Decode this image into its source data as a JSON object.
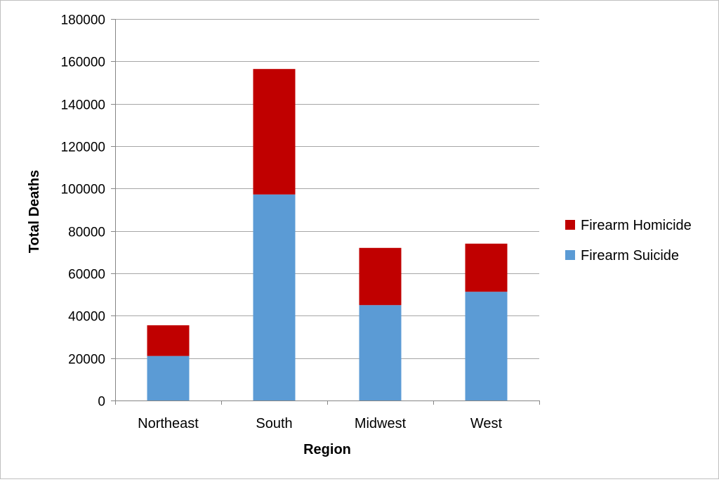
{
  "chart_data": {
    "type": "bar",
    "stacked": true,
    "categories": [
      "Northeast",
      "South",
      "Midwest",
      "West"
    ],
    "series": [
      {
        "name": "Firearm Suicide",
        "color": "#5b9bd5",
        "values": [
          21000,
          97200,
          45000,
          51300
        ]
      },
      {
        "name": "Firearm Homicide",
        "color": "#c00000",
        "values": [
          14500,
          59200,
          27000,
          22700
        ]
      }
    ],
    "title": "",
    "xlabel": "Region",
    "ylabel": "Total Deaths",
    "ylim": [
      0,
      180000
    ],
    "yticks": [
      0,
      20000,
      40000,
      60000,
      80000,
      100000,
      120000,
      140000,
      160000,
      180000
    ],
    "grid": true,
    "legend": {
      "position": "right",
      "order": [
        "Firearm Homicide",
        "Firearm Suicide"
      ]
    }
  }
}
